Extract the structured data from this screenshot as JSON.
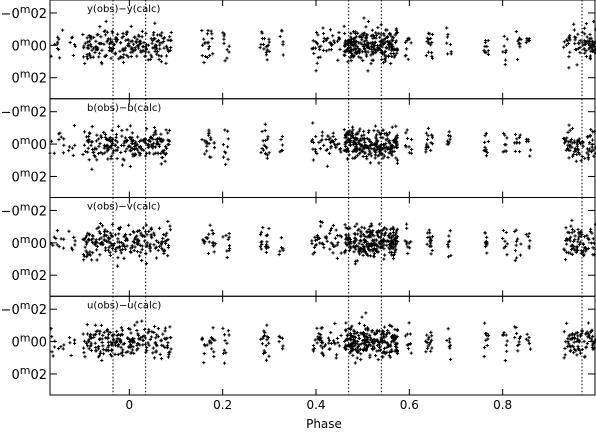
{
  "chart_data": {
    "type": "scatter",
    "xlabel": "Phase",
    "xlim": [
      -0.17,
      1.0
    ],
    "x_ticks": [
      0,
      0.2,
      0.4,
      0.6,
      0.8
    ],
    "x_tick_labels": [
      "0",
      "0.2",
      "0.4",
      "0.6",
      "0.8"
    ],
    "ylim": [
      -0.028,
      0.033
    ],
    "y_inverted": true,
    "y_ticks": [
      -0.02,
      0.0,
      0.02
    ],
    "y_tick_parts": [
      {
        "value": -0.02,
        "pre": "−0",
        "sup": "m",
        "post": "02"
      },
      {
        "value": 0.0,
        "pre": "0",
        "sup": "m",
        "post": "00"
      },
      {
        "value": 0.02,
        "pre": "0",
        "sup": "m",
        "post": "02"
      }
    ],
    "vertical_markers": [
      -0.035,
      0.035,
      0.47,
      0.54,
      0.97
    ],
    "grid": false,
    "panels": [
      {
        "label": "y(obs)−y(calc)"
      },
      {
        "label": "b(obs)−b(calc)"
      },
      {
        "label": "v(obs)−v(calc)"
      },
      {
        "label": "u(obs)−u(calc)"
      }
    ],
    "observation_groups": [
      {
        "phase_from": -0.17,
        "phase_to": -0.14,
        "n": 10
      },
      {
        "phase_from": -0.13,
        "phase_to": -0.115,
        "n": 6
      },
      {
        "phase_from": -0.1,
        "phase_to": 0.09,
        "n": 220
      },
      {
        "phase_from": 0.155,
        "phase_to": 0.185,
        "n": 20
      },
      {
        "phase_from": 0.2,
        "phase_to": 0.215,
        "n": 10
      },
      {
        "phase_from": 0.28,
        "phase_to": 0.3,
        "n": 18
      },
      {
        "phase_from": 0.32,
        "phase_to": 0.33,
        "n": 6
      },
      {
        "phase_from": 0.39,
        "phase_to": 0.455,
        "n": 45
      },
      {
        "phase_from": 0.46,
        "phase_to": 0.575,
        "n": 260
      },
      {
        "phase_from": 0.59,
        "phase_to": 0.605,
        "n": 10
      },
      {
        "phase_from": 0.635,
        "phase_to": 0.65,
        "n": 16
      },
      {
        "phase_from": 0.68,
        "phase_to": 0.69,
        "n": 8
      },
      {
        "phase_from": 0.76,
        "phase_to": 0.77,
        "n": 10
      },
      {
        "phase_from": 0.8,
        "phase_to": 0.81,
        "n": 8
      },
      {
        "phase_from": 0.825,
        "phase_to": 0.84,
        "n": 10
      },
      {
        "phase_from": 0.85,
        "phase_to": 0.86,
        "n": 6
      },
      {
        "phase_from": 0.93,
        "phase_to": 1.0,
        "n": 80
      }
    ],
    "scatter_sd_mag": 0.007
  }
}
